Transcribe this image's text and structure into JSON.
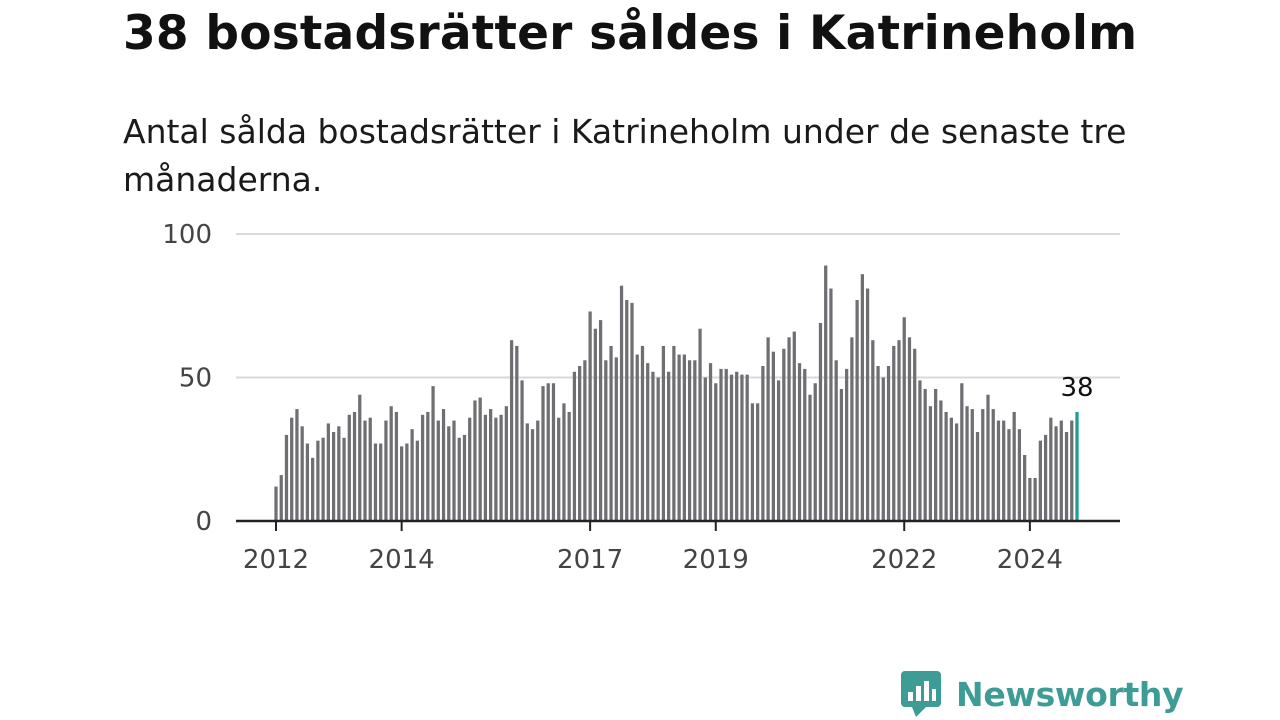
{
  "title": "38 bostadsrätter såldes i Katrineholm",
  "subtitle": "Antal sålda bostadsrätter i Katrineholm under de senaste tre månaderna.",
  "brand": {
    "name": "Newsworthy",
    "color": "#3d9c96",
    "icon": "newsworthy-chart-bubble-icon"
  },
  "chart_data": {
    "type": "bar",
    "title": "",
    "xlabel": "",
    "ylabel": "",
    "ylim": [
      0,
      100
    ],
    "yticks": [
      "0",
      "50",
      "100"
    ],
    "xticks": [
      "2012",
      "2014",
      "2017",
      "2019",
      "2022",
      "2024"
    ],
    "grid": true,
    "bar_color": "#6f6e73",
    "highlight_color": "#1f9c95",
    "highlight_label": "38",
    "first_period": "2012-01",
    "last_period": "2024-08",
    "series": [
      {
        "values": [
          12,
          16,
          30,
          36,
          39,
          33,
          27,
          22,
          28,
          29,
          34,
          31,
          33,
          29,
          37,
          38,
          44,
          35,
          36,
          27,
          27,
          35,
          40,
          38,
          26,
          27,
          32,
          28,
          37,
          38,
          47,
          35,
          39,
          33,
          35,
          29,
          30,
          36,
          42,
          43,
          37,
          39,
          36,
          37,
          40,
          63,
          61,
          49,
          34,
          32,
          35,
          47,
          48,
          48,
          36,
          41,
          38,
          52,
          54,
          56,
          73,
          67,
          70,
          56,
          61,
          57,
          82,
          77,
          76,
          58,
          61,
          55,
          52,
          50,
          61,
          52,
          61,
          58,
          58,
          56,
          56,
          67,
          50,
          55,
          48,
          53,
          53,
          51,
          52,
          51,
          51,
          41,
          41,
          54,
          64,
          59,
          49,
          60,
          64,
          66,
          55,
          53,
          44,
          48,
          69,
          89,
          81,
          56,
          46,
          53,
          64,
          77,
          86,
          81,
          63,
          54,
          50,
          54,
          61,
          63,
          71,
          64,
          60,
          49,
          46,
          40,
          46,
          42,
          38,
          36,
          34,
          48,
          40,
          39,
          31,
          39,
          44,
          39,
          35,
          35,
          32,
          38,
          32,
          23,
          15,
          15,
          28,
          30,
          36,
          33,
          35,
          31,
          35,
          38
        ]
      }
    ]
  }
}
